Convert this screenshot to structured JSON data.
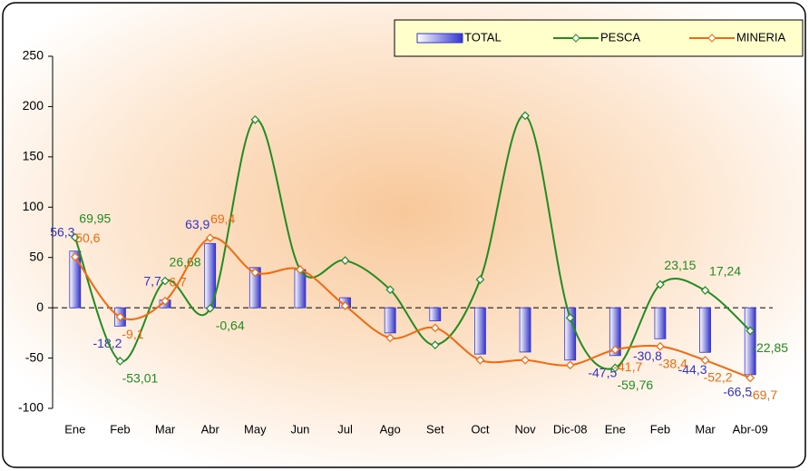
{
  "chart_data": {
    "type": "bar-line",
    "categories": [
      "Ene",
      "Feb",
      "Mar",
      "Abr",
      "May",
      "Jun",
      "Jul",
      "Ago",
      "Set",
      "Oct",
      "Nov",
      "Dic-08",
      "Ene",
      "Feb",
      "Mar",
      "Abr-09"
    ],
    "ylim": [
      -100,
      250
    ],
    "yticks": [
      -100,
      -50,
      0,
      50,
      100,
      150,
      200,
      250
    ],
    "legend": "top-right",
    "series": [
      {
        "name": "TOTAL",
        "type": "bar",
        "color": "#3333cc",
        "values": [
          56.3,
          -18.2,
          7.7,
          63.9,
          40,
          38,
          10,
          -25,
          -13,
          -46,
          -44,
          -52,
          -47.5,
          -30.8,
          -44.3,
          -66.5
        ],
        "value_labels": [
          "56,3",
          "-18,2",
          "7,7",
          "63,9",
          null,
          null,
          null,
          null,
          null,
          null,
          null,
          null,
          "-47,5",
          "-30,8",
          "-44,3",
          "-66,5"
        ]
      },
      {
        "name": "PESCA",
        "type": "line",
        "color": "#228b22",
        "values": [
          69.95,
          -53.01,
          26.68,
          -0.64,
          187,
          38,
          47,
          18,
          -37,
          28,
          191,
          -10,
          -59.76,
          23.15,
          17.24,
          -22.85
        ],
        "value_labels": [
          "69,95",
          "-53,01",
          "26,68",
          "-0,64",
          null,
          null,
          null,
          null,
          null,
          null,
          null,
          null,
          "-59,76",
          "23,15",
          "17,24",
          "-22,85"
        ]
      },
      {
        "name": "MINERIA",
        "type": "line",
        "color": "#f26a10",
        "values": [
          50.6,
          -9.1,
          6.7,
          69.4,
          35,
          38,
          2,
          -30,
          -20,
          -52,
          -52,
          -57,
          -41.7,
          -38.4,
          -52.2,
          -69.7
        ],
        "value_labels": [
          "50,6",
          "-9,1",
          "6,7",
          "69,4",
          null,
          null,
          null,
          null,
          null,
          null,
          null,
          null,
          "-41,7",
          "-38,4",
          "-52,2",
          "-69,7"
        ]
      }
    ]
  }
}
